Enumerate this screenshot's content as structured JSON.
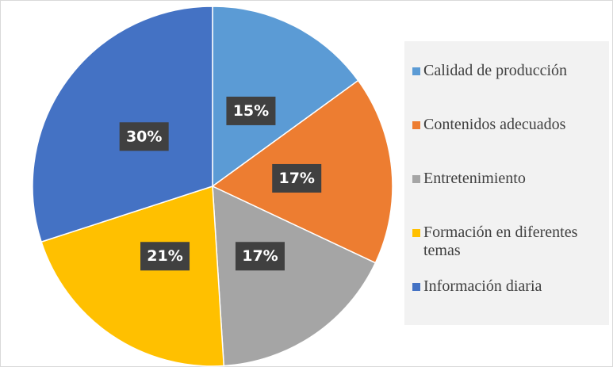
{
  "chart_data": {
    "type": "pie",
    "categories": [
      "Calidad de producción",
      "Contenidos adecuados",
      "Entretenimiento",
      "Formación en diferentes temas",
      "Información diaria"
    ],
    "values": [
      15,
      17,
      17,
      21,
      30
    ],
    "value_labels": [
      "15%",
      "17%",
      "17%",
      "21%",
      "30%"
    ],
    "colors": [
      "#5b9bd5",
      "#ed7d31",
      "#a5a5a5",
      "#ffc000",
      "#4472c4"
    ],
    "legend": "right"
  }
}
